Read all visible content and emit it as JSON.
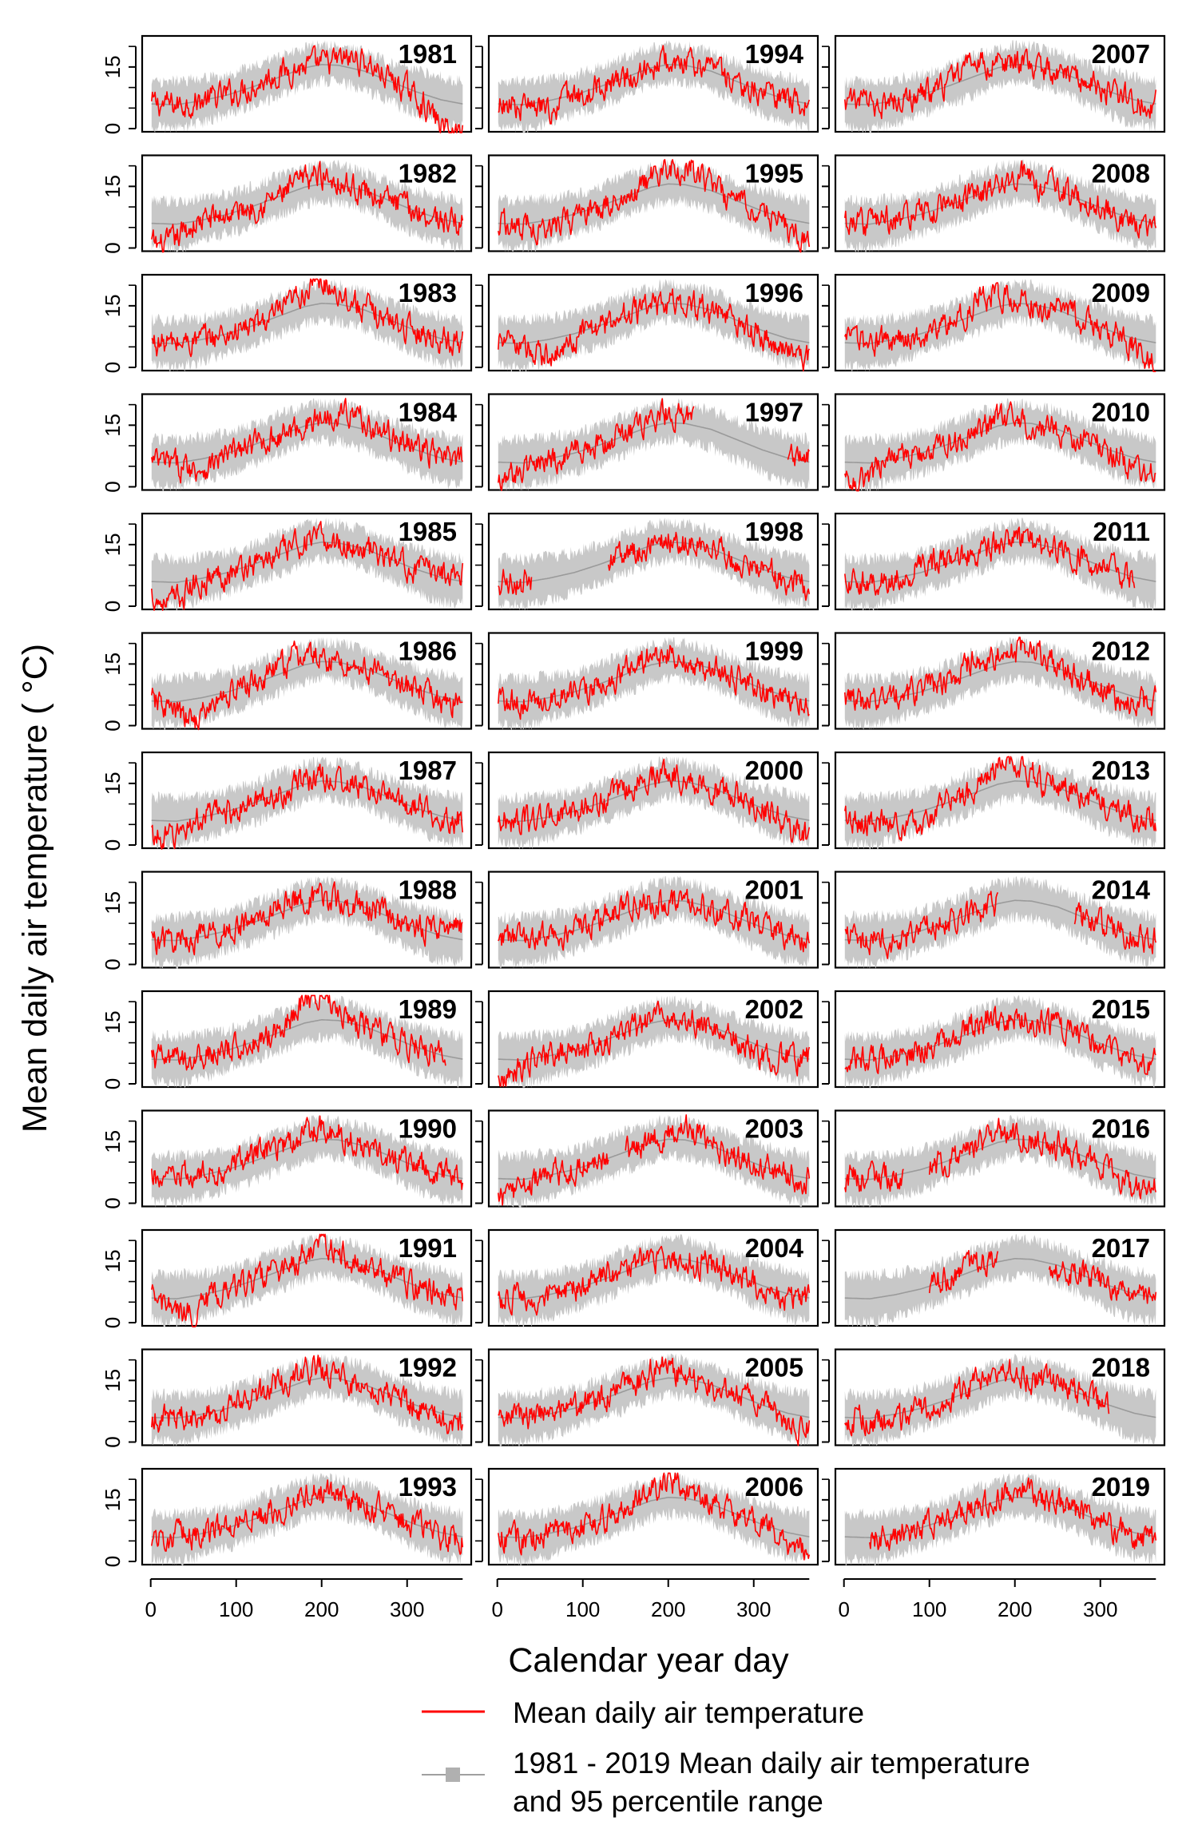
{
  "chart_data": {
    "type": "line",
    "title": "",
    "xlabel": "Calendar year day",
    "ylabel": "Mean daily air temperature ( °C)",
    "xlim": [
      -10,
      375
    ],
    "ylim": [
      0,
      21
    ],
    "x_ticks": [
      "0",
      "100",
      "200",
      "300"
    ],
    "y_ticks": [
      "0",
      "15"
    ],
    "grid": false,
    "legend": {
      "placement": "bottom-center",
      "entries": [
        {
          "name": "Mean daily air temperature",
          "color": "#ff0000",
          "lines": [
            "Mean daily air temperature"
          ]
        },
        {
          "name": "1981 - 2019 Mean daily air temperature and 95 percentile range",
          "color": "#a0a0a0",
          "lines": [
            "1981 - 2019 Mean daily air temperature",
            "and 95 percentile range"
          ]
        }
      ]
    },
    "climatology": {
      "name": "1981 - 2019 Mean daily air temperature and 95 percentile range",
      "x": [
        1,
        30,
        60,
        90,
        120,
        150,
        180,
        200,
        220,
        250,
        280,
        310,
        340,
        365
      ],
      "mean": [
        6.0,
        5.8,
        6.8,
        8.2,
        10.2,
        12.5,
        14.8,
        15.6,
        15.4,
        14.0,
        11.5,
        9.0,
        7.0,
        6.0
      ],
      "lower": [
        0.5,
        0.0,
        1.5,
        3.5,
        5.5,
        8.0,
        10.5,
        11.5,
        11.2,
        9.5,
        6.5,
        3.5,
        1.0,
        0.5
      ],
      "upper": [
        11.5,
        11.5,
        12.0,
        13.0,
        15.0,
        17.5,
        19.5,
        20.5,
        20.0,
        18.5,
        16.0,
        14.0,
        12.5,
        11.5
      ]
    },
    "series": [
      {
        "name": "1981",
        "column": 0,
        "row": 0,
        "start": 1,
        "end": 365,
        "anomalies": [
          [
            150,
            1.0
          ],
          [
            245,
            2.5
          ],
          [
            340,
            -3.0
          ],
          [
            358,
            -5.0
          ]
        ]
      },
      {
        "name": "1982",
        "column": 0,
        "row": 1,
        "start": 1,
        "end": 365,
        "anomalies": [
          [
            12,
            -5.5
          ],
          [
            195,
            2.5
          ],
          [
            300,
            0.0
          ]
        ]
      },
      {
        "name": "1983",
        "column": 0,
        "row": 2,
        "start": 1,
        "end": 365,
        "anomalies": [
          [
            190,
            4.0
          ],
          [
            215,
            2.0
          ]
        ]
      },
      {
        "name": "1984",
        "column": 0,
        "row": 3,
        "start": 1,
        "end": 365,
        "anomalies": [
          [
            60,
            -2.0
          ],
          [
            230,
            3.5
          ],
          [
            300,
            1.0
          ]
        ]
      },
      {
        "name": "1985",
        "column": 0,
        "row": 4,
        "start": 1,
        "end": 365,
        "anomalies": [
          [
            20,
            -5.0
          ],
          [
            180,
            1.0
          ],
          [
            355,
            2.0
          ]
        ]
      },
      {
        "name": "1986",
        "column": 0,
        "row": 5,
        "start": 1,
        "end": 365,
        "anomalies": [
          [
            50,
            -5.0
          ],
          [
            170,
            2.5
          ],
          [
            330,
            -1.0
          ]
        ]
      },
      {
        "name": "1987",
        "column": 0,
        "row": 6,
        "start": 1,
        "end": 365,
        "anomalies": [
          [
            15,
            -4.5
          ],
          [
            190,
            1.0
          ],
          [
            350,
            0.0
          ]
        ]
      },
      {
        "name": "1988",
        "column": 0,
        "row": 7,
        "start": 1,
        "end": 365,
        "anomalies": [
          [
            160,
            2.0
          ],
          [
            360,
            4.0
          ]
        ]
      },
      {
        "name": "1989",
        "column": 0,
        "row": 8,
        "start": 1,
        "end": 345,
        "anomalies": [
          [
            180,
            3.0
          ],
          [
            200,
            4.0
          ],
          [
            320,
            0.0
          ]
        ]
      },
      {
        "name": "1990",
        "column": 0,
        "row": 9,
        "start": 1,
        "end": 365,
        "anomalies": [
          [
            130,
            2.0
          ],
          [
            200,
            3.0
          ],
          [
            300,
            0.0
          ]
        ]
      },
      {
        "name": "1991",
        "column": 0,
        "row": 10,
        "start": 1,
        "end": 365,
        "anomalies": [
          [
            40,
            -4.0
          ],
          [
            205,
            2.5
          ],
          [
            330,
            0.0
          ]
        ]
      },
      {
        "name": "1992",
        "column": 0,
        "row": 11,
        "start": 1,
        "end": 365,
        "anomalies": [
          [
            150,
            1.5
          ],
          [
            190,
            2.0
          ],
          [
            350,
            -2.0
          ]
        ]
      },
      {
        "name": "1993",
        "column": 0,
        "row": 12,
        "start": 1,
        "end": 365,
        "anomalies": [
          [
            100,
            1.0
          ],
          [
            190,
            2.0
          ],
          [
            350,
            -1.5
          ]
        ]
      },
      {
        "name": "1994",
        "column": 1,
        "row": 0,
        "start": 1,
        "end": 365,
        "anomalies": [
          [
            60,
            -2.0
          ],
          [
            200,
            0.5
          ],
          [
            300,
            0.0
          ]
        ]
      },
      {
        "name": "1995",
        "column": 1,
        "row": 1,
        "start": 1,
        "end": 365,
        "anomalies": [
          [
            60,
            -2.0
          ],
          [
            190,
            3.0
          ],
          [
            225,
            3.5
          ],
          [
            360,
            -4.0
          ]
        ]
      },
      {
        "name": "1996",
        "column": 1,
        "row": 2,
        "start": 1,
        "end": 365,
        "anomalies": [
          [
            60,
            -4.0
          ],
          [
            330,
            -2.0
          ],
          [
            360,
            -3.0
          ]
        ]
      },
      {
        "name": "1997",
        "column": 1,
        "row": 3,
        "start": 1,
        "end": 230,
        "anomalies": [
          [
            10,
            -4.0
          ],
          [
            200,
            2.5
          ]
        ]
      },
      {
        "name": "1997b",
        "column": 1,
        "row": 3,
        "start": 340,
        "end": 365,
        "anomalies": [
          [
            352,
            1.0
          ]
        ]
      },
      {
        "name": "1998",
        "column": 1,
        "row": 4,
        "start": 1,
        "end": 40,
        "anomalies": [
          [
            20,
            0.0
          ]
        ]
      },
      {
        "name": "1998b",
        "column": 1,
        "row": 4,
        "start": 130,
        "end": 365,
        "anomalies": [
          [
            200,
            0.5
          ],
          [
            355,
            -1.0
          ]
        ]
      },
      {
        "name": "1999",
        "column": 1,
        "row": 5,
        "start": 1,
        "end": 365,
        "anomalies": [
          [
            190,
            2.5
          ],
          [
            340,
            -1.0
          ]
        ]
      },
      {
        "name": "2000",
        "column": 1,
        "row": 6,
        "start": 1,
        "end": 365,
        "anomalies": [
          [
            190,
            2.5
          ],
          [
            360,
            -4.0
          ]
        ]
      },
      {
        "name": "2001",
        "column": 1,
        "row": 7,
        "start": 1,
        "end": 365,
        "anomalies": [
          [
            140,
            2.0
          ],
          [
            300,
            0.0
          ]
        ]
      },
      {
        "name": "2002",
        "column": 1,
        "row": 8,
        "start": 1,
        "end": 365,
        "anomalies": [
          [
            5,
            -4.0
          ],
          [
            200,
            1.0
          ],
          [
            310,
            -2.0
          ]
        ]
      },
      {
        "name": "2003",
        "column": 1,
        "row": 9,
        "start": 1,
        "end": 130,
        "anomalies": [
          [
            10,
            -4.0
          ]
        ]
      },
      {
        "name": "2003b",
        "column": 1,
        "row": 9,
        "start": 150,
        "end": 365,
        "anomalies": [
          [
            220,
            3.5
          ],
          [
            300,
            0.0
          ]
        ]
      },
      {
        "name": "2004",
        "column": 1,
        "row": 10,
        "start": 1,
        "end": 365,
        "anomalies": [
          [
            160,
            1.0
          ],
          [
            320,
            -1.0
          ]
        ]
      },
      {
        "name": "2005",
        "column": 1,
        "row": 11,
        "start": 1,
        "end": 365,
        "anomalies": [
          [
            190,
            3.0
          ],
          [
            355,
            -3.0
          ]
        ]
      },
      {
        "name": "2006",
        "column": 1,
        "row": 12,
        "start": 1,
        "end": 365,
        "anomalies": [
          [
            200,
            4.0
          ],
          [
            355,
            -3.0
          ]
        ]
      },
      {
        "name": "2007",
        "column": 2,
        "row": 0,
        "start": 1,
        "end": 365,
        "anomalies": [
          [
            150,
            3.0
          ],
          [
            280,
            0.0
          ]
        ]
      },
      {
        "name": "2008",
        "column": 2,
        "row": 1,
        "start": 1,
        "end": 365,
        "anomalies": [
          [
            200,
            2.0
          ],
          [
            360,
            -2.0
          ]
        ]
      },
      {
        "name": "2009",
        "column": 2,
        "row": 2,
        "start": 1,
        "end": 365,
        "anomalies": [
          [
            170,
            3.0
          ],
          [
            360,
            -4.0
          ]
        ]
      },
      {
        "name": "2010",
        "column": 2,
        "row": 3,
        "start": 1,
        "end": 365,
        "anomalies": [
          [
            10,
            -5.0
          ],
          [
            180,
            1.0
          ],
          [
            350,
            -4.0
          ]
        ]
      },
      {
        "name": "2011",
        "column": 2,
        "row": 4,
        "start": 1,
        "end": 340,
        "anomalies": [
          [
            100,
            1.5
          ],
          [
            200,
            0.5
          ]
        ]
      },
      {
        "name": "2012",
        "column": 2,
        "row": 5,
        "start": 1,
        "end": 365,
        "anomalies": [
          [
            150,
            3.0
          ],
          [
            215,
            3.0
          ],
          [
            330,
            -2.0
          ]
        ]
      },
      {
        "name": "2013",
        "column": 2,
        "row": 6,
        "start": 1,
        "end": 365,
        "anomalies": [
          [
            80,
            -3.0
          ],
          [
            190,
            4.5
          ],
          [
            280,
            1.0
          ]
        ]
      },
      {
        "name": "2014",
        "column": 2,
        "row": 7,
        "start": 1,
        "end": 180,
        "anomalies": [
          [
            60,
            -1.0
          ]
        ]
      },
      {
        "name": "2014b",
        "column": 2,
        "row": 7,
        "start": 270,
        "end": 365,
        "anomalies": [
          [
            300,
            0.0
          ]
        ]
      },
      {
        "name": "2015",
        "column": 2,
        "row": 8,
        "start": 1,
        "end": 365,
        "anomalies": [
          [
            160,
            2.0
          ],
          [
            350,
            -1.0
          ]
        ]
      },
      {
        "name": "2016",
        "column": 2,
        "row": 9,
        "start": 1,
        "end": 70,
        "anomalies": [
          [
            20,
            0.0
          ]
        ]
      },
      {
        "name": "2016b",
        "column": 2,
        "row": 9,
        "start": 100,
        "end": 365,
        "anomalies": [
          [
            170,
            2.5
          ],
          [
            340,
            -3.0
          ]
        ]
      },
      {
        "name": "2017",
        "column": 2,
        "row": 10,
        "start": 100,
        "end": 180,
        "anomalies": [
          [
            150,
            1.5
          ]
        ]
      },
      {
        "name": "2017b",
        "column": 2,
        "row": 10,
        "start": 240,
        "end": 365,
        "anomalies": [
          [
            300,
            0.0
          ]
        ]
      },
      {
        "name": "2018",
        "column": 2,
        "row": 11,
        "start": 1,
        "end": 310,
        "anomalies": [
          [
            60,
            -2.0
          ],
          [
            170,
            3.0
          ]
        ]
      },
      {
        "name": "2019",
        "column": 2,
        "row": 12,
        "start": 30,
        "end": 365,
        "anomalies": [
          [
            200,
            2.0
          ],
          [
            350,
            -1.5
          ]
        ]
      }
    ]
  }
}
